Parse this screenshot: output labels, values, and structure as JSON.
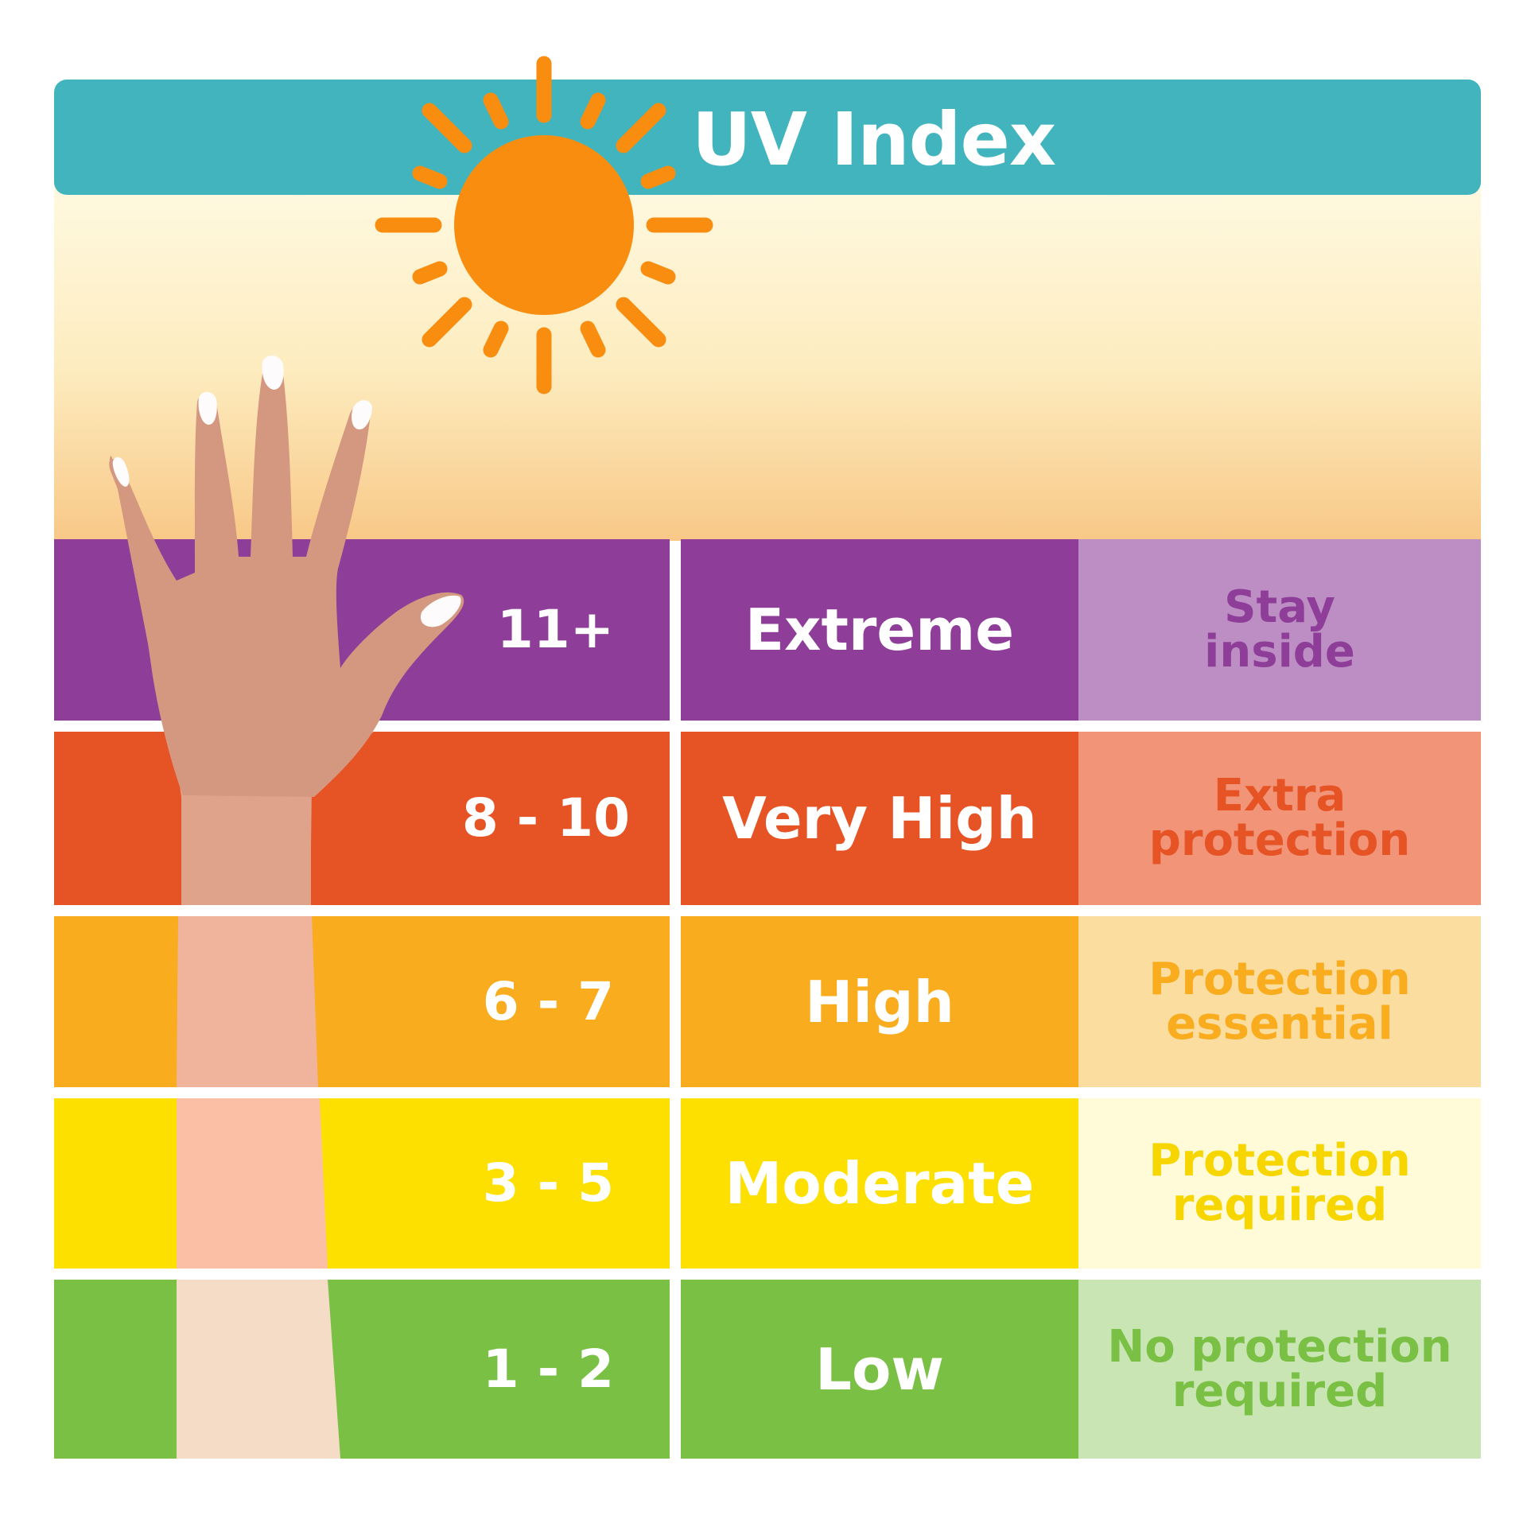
{
  "title": "UV Index",
  "rows": [
    {
      "range": "11+",
      "level": "Extreme",
      "advice_line1": "Stay",
      "advice_line2": "inside",
      "color": "#8e3e98",
      "advice_bg": "#bd8ec3",
      "advice_color": "#8e3e98"
    },
    {
      "range": "8 - 10",
      "level": "Very High",
      "advice_line1": "Extra",
      "advice_line2": "protection",
      "color": "#e65426",
      "advice_bg": "#f19478",
      "advice_color": "#e65426"
    },
    {
      "range": "6 - 7",
      "level": "High",
      "advice_line1": "Protection",
      "advice_line2": "essential",
      "color": "#f9ac1e",
      "advice_bg": "#fcdda0",
      "advice_color": "#f9ac1e"
    },
    {
      "range": "3 - 5",
      "level": "Moderate",
      "advice_line1": "Protection",
      "advice_line2": "required",
      "color": "#fde000",
      "advice_bg": "#fffad8",
      "advice_color": "#f7d600"
    },
    {
      "range": "1 - 2",
      "level": "Low",
      "advice_line1": "No protection",
      "advice_line2": "required",
      "color": "#79c045",
      "advice_bg": "#c9e5b3",
      "advice_color": "#79c045"
    }
  ],
  "colors": {
    "header_bar": "#41b4be",
    "sun": "#f98d10",
    "sky_top": "#fffbe5",
    "sky_bottom": "#f8c887",
    "skin_hand": "#d49880"
  }
}
